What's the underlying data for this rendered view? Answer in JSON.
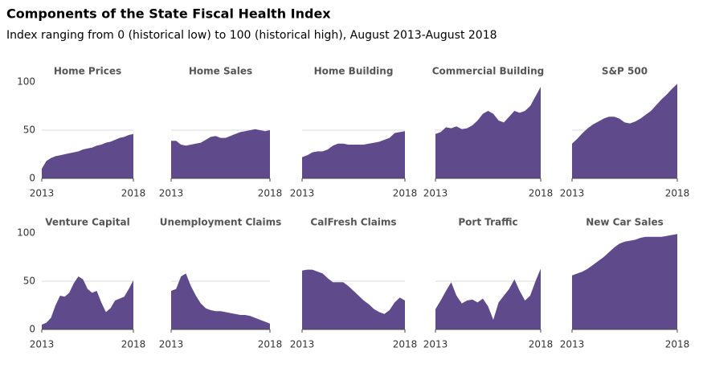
{
  "title": "Components of the State Fiscal Health Index",
  "subtitle": "Index ranging from 0 (historical low) to 100 (historical high), August 2013-August 2018",
  "chart_data": [
    {
      "type": "area",
      "title": "Home Prices",
      "color": "#5f4b8b",
      "xlim": [
        2013,
        2018
      ],
      "xticks": [
        2013,
        2018
      ],
      "ylim": [
        0,
        100
      ],
      "yticks": [
        0,
        50,
        100
      ],
      "x": [
        2013,
        2013.25,
        2013.5,
        2013.75,
        2014,
        2014.25,
        2014.5,
        2014.75,
        2015,
        2015.25,
        2015.5,
        2015.75,
        2016,
        2016.25,
        2016.5,
        2016.75,
        2017,
        2017.25,
        2017.5,
        2017.75,
        2018
      ],
      "values": [
        10,
        18,
        21,
        23,
        24,
        25,
        26,
        27,
        28,
        30,
        31,
        32,
        34,
        35,
        37,
        38,
        40,
        42,
        43,
        45,
        46
      ]
    },
    {
      "type": "area",
      "title": "Home Sales",
      "color": "#5f4b8b",
      "xlim": [
        2013,
        2018
      ],
      "xticks": [
        2013,
        2018
      ],
      "ylim": [
        0,
        100
      ],
      "yticks": [
        0,
        50,
        100
      ],
      "x": [
        2013,
        2013.25,
        2013.5,
        2013.75,
        2014,
        2014.25,
        2014.5,
        2014.75,
        2015,
        2015.25,
        2015.5,
        2015.75,
        2016,
        2016.25,
        2016.5,
        2016.75,
        2017,
        2017.25,
        2017.5,
        2017.75,
        2018
      ],
      "values": [
        39,
        39,
        35,
        34,
        35,
        36,
        37,
        40,
        43,
        44,
        42,
        42,
        44,
        46,
        48,
        49,
        50,
        51,
        50,
        49,
        50
      ]
    },
    {
      "type": "area",
      "title": "Home Building",
      "color": "#5f4b8b",
      "xlim": [
        2013,
        2018
      ],
      "xticks": [
        2013,
        2018
      ],
      "ylim": [
        0,
        100
      ],
      "yticks": [
        0,
        50,
        100
      ],
      "x": [
        2013,
        2013.25,
        2013.5,
        2013.75,
        2014,
        2014.25,
        2014.5,
        2014.75,
        2015,
        2015.25,
        2015.5,
        2015.75,
        2016,
        2016.25,
        2016.5,
        2016.75,
        2017,
        2017.25,
        2017.5,
        2017.75,
        2018
      ],
      "values": [
        22,
        24,
        27,
        28,
        28,
        30,
        34,
        36,
        36,
        35,
        35,
        35,
        35,
        36,
        37,
        38,
        40,
        42,
        47,
        48,
        49
      ]
    },
    {
      "type": "area",
      "title": "Commercial Building",
      "color": "#5f4b8b",
      "xlim": [
        2013,
        2018
      ],
      "xticks": [
        2013,
        2018
      ],
      "ylim": [
        0,
        100
      ],
      "yticks": [
        0,
        50,
        100
      ],
      "x": [
        2013,
        2013.25,
        2013.5,
        2013.75,
        2014,
        2014.25,
        2014.5,
        2014.75,
        2015,
        2015.25,
        2015.5,
        2015.75,
        2016,
        2016.25,
        2016.5,
        2016.75,
        2017,
        2017.25,
        2017.5,
        2017.75,
        2018
      ],
      "values": [
        46,
        48,
        53,
        52,
        54,
        51,
        52,
        55,
        60,
        67,
        70,
        67,
        60,
        58,
        64,
        70,
        68,
        70,
        75,
        85,
        95
      ]
    },
    {
      "type": "area",
      "title": "S&P 500",
      "color": "#5f4b8b",
      "xlim": [
        2013,
        2018
      ],
      "xticks": [
        2013,
        2018
      ],
      "ylim": [
        0,
        100
      ],
      "yticks": [
        0,
        50,
        100
      ],
      "x": [
        2013,
        2013.25,
        2013.5,
        2013.75,
        2014,
        2014.25,
        2014.5,
        2014.75,
        2015,
        2015.25,
        2015.5,
        2015.75,
        2016,
        2016.25,
        2016.5,
        2016.75,
        2017,
        2017.25,
        2017.5,
        2017.75,
        2018
      ],
      "values": [
        36,
        41,
        47,
        52,
        56,
        59,
        62,
        64,
        64,
        62,
        58,
        57,
        59,
        62,
        66,
        70,
        76,
        82,
        87,
        93,
        98
      ]
    },
    {
      "type": "area",
      "title": "Venture Capital",
      "color": "#5f4b8b",
      "xlim": [
        2013,
        2018
      ],
      "xticks": [
        2013,
        2018
      ],
      "ylim": [
        0,
        100
      ],
      "yticks": [
        0,
        50,
        100
      ],
      "x": [
        2013,
        2013.25,
        2013.5,
        2013.75,
        2014,
        2014.25,
        2014.5,
        2014.75,
        2015,
        2015.25,
        2015.5,
        2015.75,
        2016,
        2016.25,
        2016.5,
        2016.75,
        2017,
        2017.25,
        2017.5,
        2017.75,
        2018
      ],
      "values": [
        5,
        7,
        12,
        25,
        35,
        34,
        38,
        48,
        55,
        52,
        42,
        38,
        40,
        28,
        18,
        22,
        30,
        32,
        34,
        42,
        51
      ]
    },
    {
      "type": "area",
      "title": "Unemployment Claims",
      "color": "#5f4b8b",
      "xlim": [
        2013,
        2018
      ],
      "xticks": [
        2013,
        2018
      ],
      "ylim": [
        0,
        100
      ],
      "yticks": [
        0,
        50,
        100
      ],
      "x": [
        2013,
        2013.25,
        2013.5,
        2013.75,
        2014,
        2014.25,
        2014.5,
        2014.75,
        2015,
        2015.25,
        2015.5,
        2015.75,
        2016,
        2016.25,
        2016.5,
        2016.75,
        2017,
        2017.25,
        2017.5,
        2017.75,
        2018
      ],
      "values": [
        40,
        42,
        55,
        58,
        45,
        35,
        27,
        22,
        20,
        19,
        19,
        18,
        17,
        16,
        15,
        15,
        14,
        12,
        10,
        8,
        6
      ]
    },
    {
      "type": "area",
      "title": "CalFresh Claims",
      "color": "#5f4b8b",
      "xlim": [
        2013,
        2018
      ],
      "xticks": [
        2013,
        2018
      ],
      "ylim": [
        0,
        100
      ],
      "yticks": [
        0,
        50,
        100
      ],
      "x": [
        2013,
        2013.25,
        2013.5,
        2013.75,
        2014,
        2014.25,
        2014.5,
        2014.75,
        2015,
        2015.25,
        2015.5,
        2015.75,
        2016,
        2016.25,
        2016.5,
        2016.75,
        2017,
        2017.25,
        2017.5,
        2017.75,
        2018
      ],
      "values": [
        61,
        62,
        62,
        60,
        58,
        53,
        49,
        49,
        49,
        45,
        40,
        35,
        30,
        26,
        21,
        18,
        16,
        20,
        28,
        33,
        30
      ]
    },
    {
      "type": "area",
      "title": "Port Traffic",
      "color": "#5f4b8b",
      "xlim": [
        2013,
        2018
      ],
      "xticks": [
        2013,
        2018
      ],
      "ylim": [
        0,
        100
      ],
      "yticks": [
        0,
        50,
        100
      ],
      "x": [
        2013,
        2013.25,
        2013.5,
        2013.75,
        2014,
        2014.25,
        2014.5,
        2014.75,
        2015,
        2015.25,
        2015.5,
        2015.75,
        2016,
        2016.25,
        2016.5,
        2016.75,
        2017,
        2017.25,
        2017.5,
        2017.75,
        2018
      ],
      "values": [
        21,
        30,
        40,
        49,
        35,
        27,
        30,
        31,
        28,
        32,
        24,
        10,
        28,
        35,
        42,
        52,
        40,
        30,
        35,
        50,
        63
      ]
    },
    {
      "type": "area",
      "title": "New Car Sales",
      "color": "#5f4b8b",
      "xlim": [
        2013,
        2018
      ],
      "xticks": [
        2013,
        2018
      ],
      "ylim": [
        0,
        100
      ],
      "yticks": [
        0,
        50,
        100
      ],
      "x": [
        2013,
        2013.25,
        2013.5,
        2013.75,
        2014,
        2014.25,
        2014.5,
        2014.75,
        2015,
        2015.25,
        2015.5,
        2015.75,
        2016,
        2016.25,
        2016.5,
        2016.75,
        2017,
        2017.25,
        2017.5,
        2017.75,
        2018
      ],
      "values": [
        56,
        58,
        60,
        63,
        67,
        71,
        75,
        80,
        85,
        89,
        91,
        92,
        93,
        95,
        96,
        96,
        96,
        96,
        97,
        98,
        99
      ]
    }
  ]
}
